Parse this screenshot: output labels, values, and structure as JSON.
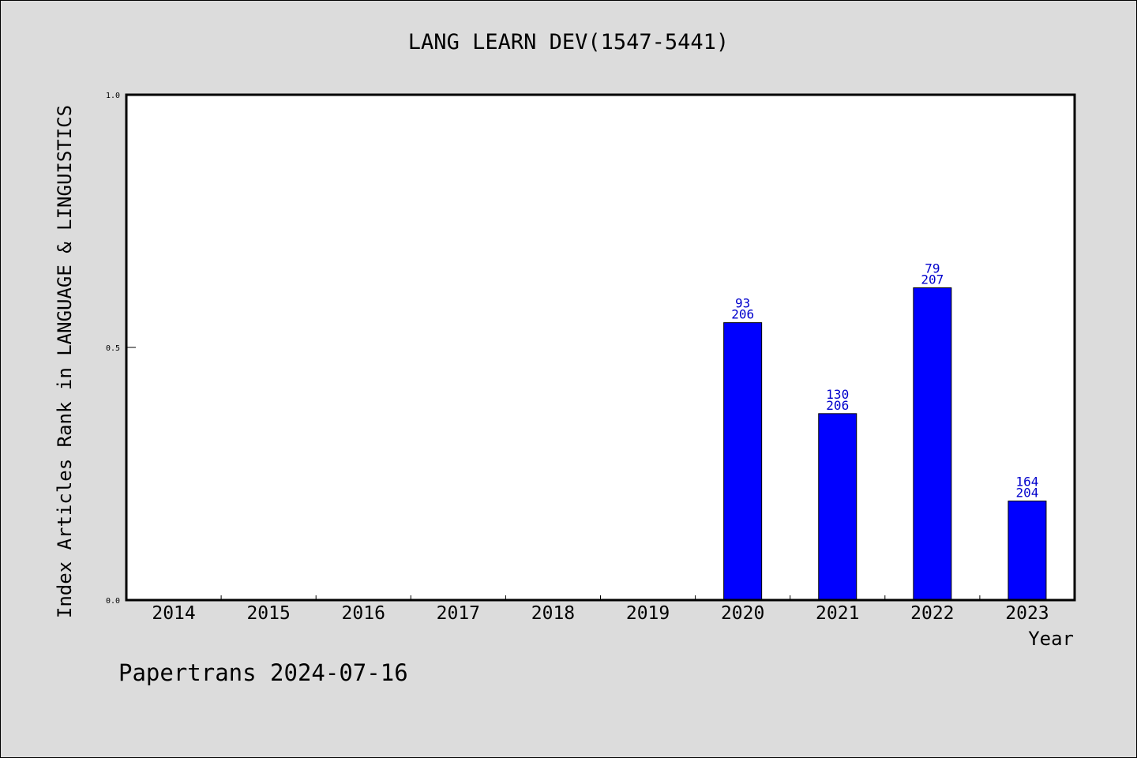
{
  "chart_data": {
    "type": "bar",
    "title": "LANG LEARN DEV(1547-5441)",
    "xlabel": "Year",
    "ylabel": "Index Articles Rank in LANGUAGE & LINGUISTICS",
    "ylim": [
      0,
      1
    ],
    "yticks": [
      "0.0",
      "0.5",
      "1.0"
    ],
    "categories": [
      "2014",
      "2015",
      "2016",
      "2017",
      "2018",
      "2019",
      "2020",
      "2021",
      "2022",
      "2023"
    ],
    "values": [
      null,
      null,
      null,
      null,
      null,
      null,
      0.549,
      0.369,
      0.618,
      0.196
    ],
    "labels": [
      null,
      null,
      null,
      null,
      null,
      null,
      {
        "rank": "93",
        "total": "206"
      },
      {
        "rank": "130",
        "total": "206"
      },
      {
        "rank": "79",
        "total": "207"
      },
      {
        "rank": "164",
        "total": "204"
      }
    ],
    "bar_color": "#0000ff",
    "label_color": "#0000cc",
    "grid": false
  },
  "footer": {
    "note": "Papertrans 2024-07-16"
  }
}
